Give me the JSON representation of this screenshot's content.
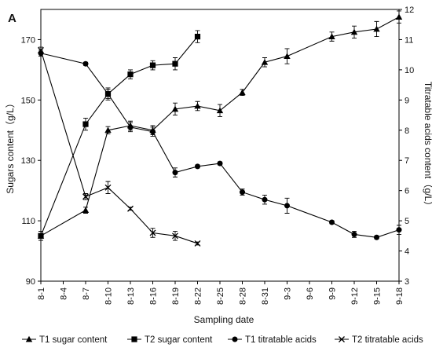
{
  "chart_data": {
    "type": "line",
    "panel_label": "A",
    "xlabel": "Sampling date",
    "ylabel_left": "Sugars content（g/L）",
    "ylabel_right": "Titratable acids content（g/L）",
    "ylim_left": [
      90,
      180
    ],
    "ylim_right": [
      3,
      12
    ],
    "yticks_left": [
      "90",
      "110",
      "130",
      "150",
      "170"
    ],
    "yticks_left_values": [
      90,
      110,
      130,
      150,
      170
    ],
    "yticks_right": [
      "3",
      "4",
      "5",
      "6",
      "7",
      "8",
      "9",
      "10",
      "11",
      "12"
    ],
    "yticks_right_values": [
      3,
      4,
      5,
      6,
      7,
      8,
      9,
      10,
      11,
      12
    ],
    "x_tick_labels": [
      "8-1",
      "8-4",
      "8-7",
      "8-10",
      "8-13",
      "8-16",
      "8-19",
      "8-22",
      "8-25",
      "8-28",
      "8-31",
      "9-3",
      "9-6",
      "9-9",
      "9-12",
      "9-15",
      "9-18"
    ],
    "x_days": [
      1,
      4,
      7,
      10,
      13,
      16,
      19,
      22,
      25,
      28,
      31,
      34,
      37,
      40,
      43,
      46,
      49
    ],
    "series": [
      {
        "name": "T1 sugar content",
        "axis": "left",
        "marker": "triangle",
        "x": [
          "8-1",
          "8-7",
          "8-10",
          "8-13",
          "8-16",
          "8-19",
          "8-22",
          "8-25",
          "8-28",
          "8-31",
          "9-3",
          "9-9",
          "9-12",
          "9-15",
          "9-18"
        ],
        "y": [
          105,
          113.5,
          140,
          141.5,
          140,
          147,
          148,
          146.5,
          152.5,
          162.5,
          164.5,
          171,
          172.5,
          173.5,
          177.5
        ],
        "err": [
          1.5,
          1.0,
          1.2,
          1.5,
          1.5,
          2.0,
          1.5,
          2.0,
          1.0,
          1.5,
          2.5,
          1.5,
          2.0,
          2.5,
          2.0
        ]
      },
      {
        "name": "T2 sugar content",
        "axis": "left",
        "marker": "square",
        "x": [
          "8-1",
          "8-7",
          "8-10",
          "8-13",
          "8-16",
          "8-19",
          "8-22"
        ],
        "y": [
          105,
          142,
          152,
          158.5,
          161.5,
          162,
          171
        ],
        "err": [
          1.5,
          2.0,
          2.0,
          1.5,
          1.5,
          2.0,
          2.0
        ]
      },
      {
        "name": "T1 titratable acids",
        "axis": "right",
        "marker": "circle",
        "x": [
          "8-1",
          "8-7",
          "8-10",
          "8-13",
          "8-16",
          "8-19",
          "8-22",
          "8-25",
          "8-28",
          "8-31",
          "9-3",
          "9-9",
          "9-12",
          "9-15",
          "9-18"
        ],
        "y": [
          10.55,
          10.2,
          9.2,
          8.1,
          7.95,
          6.6,
          6.8,
          6.9,
          5.95,
          5.7,
          5.5,
          4.95,
          4.55,
          4.45,
          4.7
        ],
        "err": [
          0.1,
          0.05,
          0.15,
          0.15,
          0.15,
          0.15,
          0.05,
          0.05,
          0.1,
          0.15,
          0.25,
          0.05,
          0.1,
          0.05,
          0.15
        ]
      },
      {
        "name": "T2 titratable acids",
        "axis": "right",
        "marker": "x",
        "x": [
          "8-1",
          "8-7",
          "8-10",
          "8-13",
          "8-16",
          "8-19",
          "8-22"
        ],
        "y": [
          10.65,
          5.8,
          6.1,
          5.4,
          4.6,
          4.5,
          4.25
        ],
        "err": [
          0.1,
          0.1,
          0.2,
          0.05,
          0.15,
          0.15,
          0.05
        ]
      }
    ],
    "legend_position": "bottom",
    "grid": false
  }
}
